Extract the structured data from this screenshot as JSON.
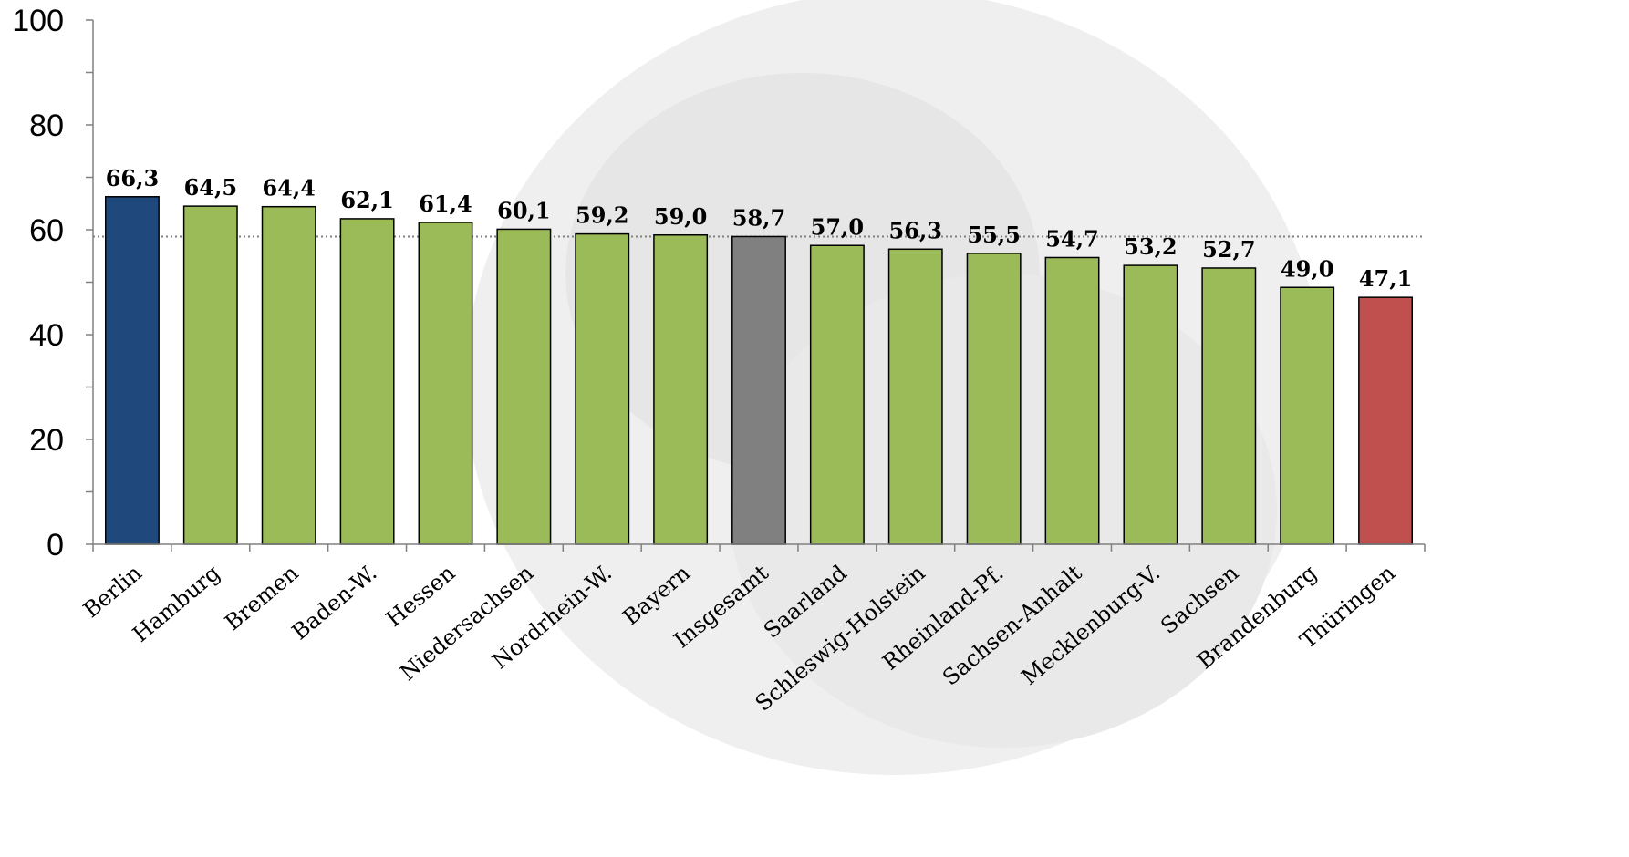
{
  "chart_data": {
    "type": "bar",
    "title": "",
    "xlabel": "",
    "ylabel": "",
    "ylim": [
      0,
      100
    ],
    "yticks": [
      0,
      20,
      40,
      60,
      80,
      100
    ],
    "categories": [
      "Berlin",
      "Hamburg",
      "Bremen",
      "Baden-W.",
      "Hessen",
      "Niedersachsen",
      "Nordrhein-W.",
      "Bayern",
      "Insgesamt",
      "Saarland",
      "Schleswig-Holstein",
      "Rheinland-Pf.",
      "Sachsen-Anhalt",
      "Mecklenburg-V.",
      "Sachsen",
      "Brandenburg",
      "Thüringen"
    ],
    "values": [
      66.3,
      64.5,
      64.4,
      62.1,
      61.4,
      60.1,
      59.2,
      59.0,
      58.7,
      57.0,
      56.3,
      55.5,
      54.7,
      53.2,
      52.7,
      49.0,
      47.1
    ],
    "value_labels": [
      "66,3",
      "64,5",
      "64,4",
      "62,1",
      "61,4",
      "60,1",
      "59,2",
      "59,0",
      "58,7",
      "57,0",
      "56,3",
      "55,5",
      "54,7",
      "53,2",
      "52,7",
      "49,0",
      "47,1"
    ],
    "reference_line": 58.7,
    "grid": false,
    "legend": "none",
    "colors": {
      "default": "#9BBB59",
      "highest": "#1F497D",
      "average": "#808080",
      "lowest": "#C0504D"
    },
    "bar_colors": [
      "#1F497D",
      "#9BBB59",
      "#9BBB59",
      "#9BBB59",
      "#9BBB59",
      "#9BBB59",
      "#9BBB59",
      "#9BBB59",
      "#808080",
      "#9BBB59",
      "#9BBB59",
      "#9BBB59",
      "#9BBB59",
      "#9BBB59",
      "#9BBB59",
      "#9BBB59",
      "#C0504D"
    ]
  }
}
